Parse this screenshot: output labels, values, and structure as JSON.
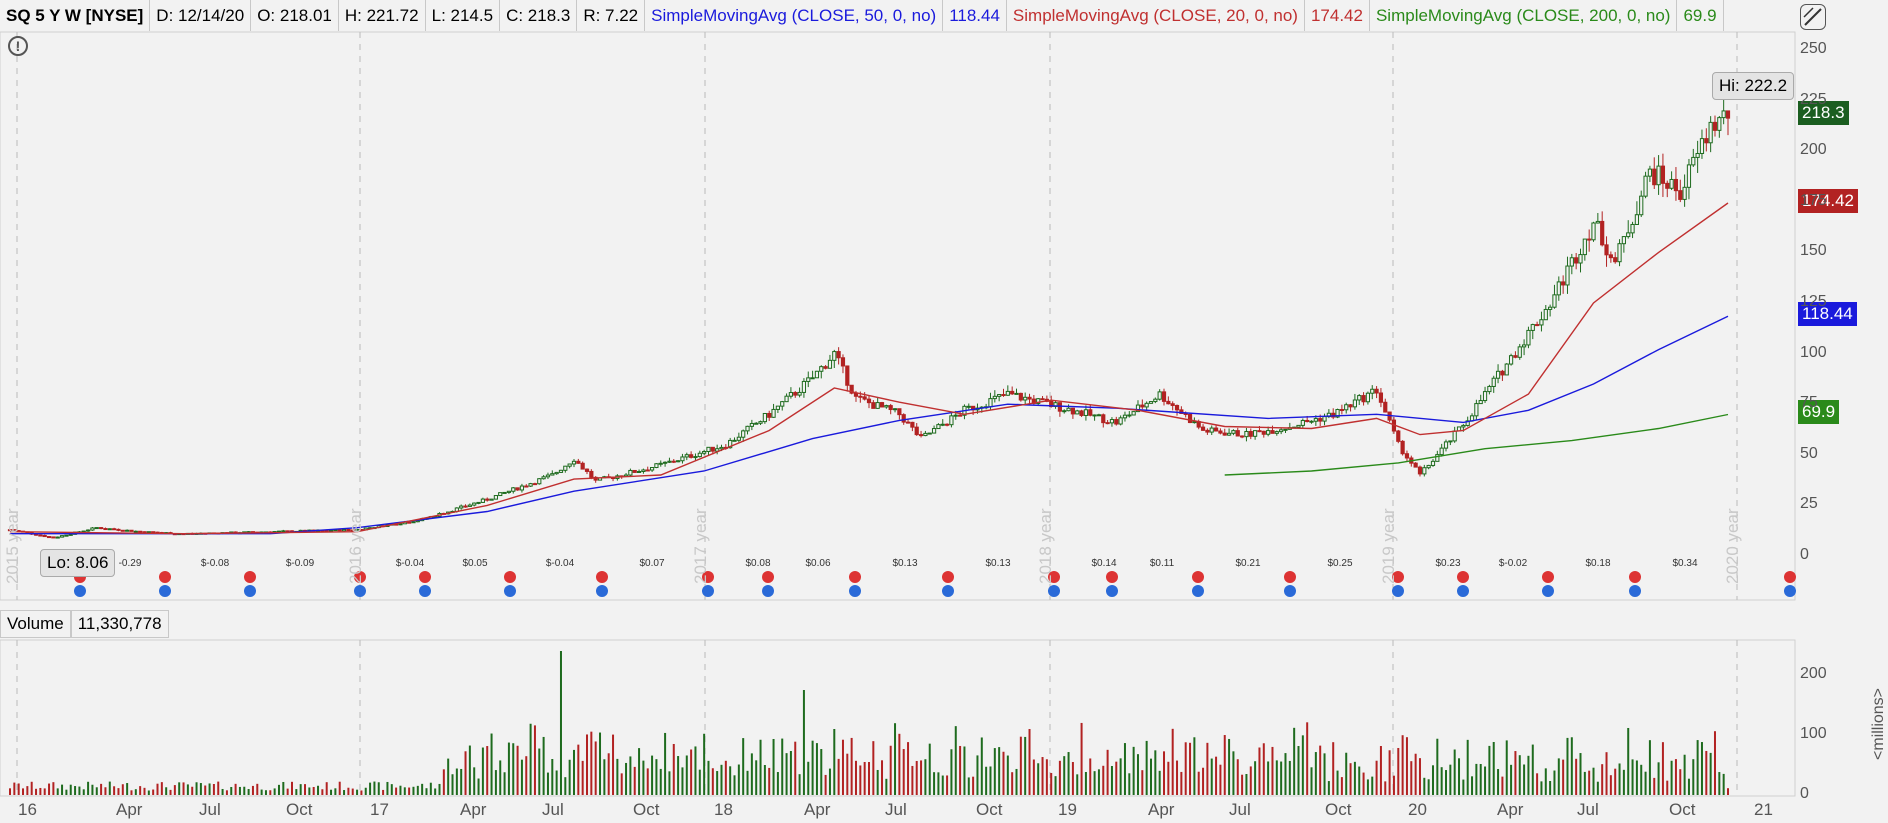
{
  "header": {
    "symbol": "SQ 5 Y W [NYSE]",
    "date": "D: 12/14/20",
    "open": "O: 218.01",
    "high": "H: 221.72",
    "low": "L: 214.5",
    "close": "C: 218.3",
    "range": "R: 7.22",
    "sma50_label": "SimpleMovingAvg (CLOSE, 50, 0, no)",
    "sma50_value": "118.44",
    "sma20_label": "SimpleMovingAvg (CLOSE, 20, 0, no)",
    "sma20_value": "174.42",
    "sma200_label": "SimpleMovingAvg (CLOSE, 200, 0, no)",
    "sma200_value": "69.9"
  },
  "volume_header": {
    "label": "Volume",
    "value": "11,330,778"
  },
  "callouts": {
    "hi": "Hi: 222.2",
    "lo": "Lo: 8.06"
  },
  "price_tags": {
    "close": "218.3",
    "sma20": "174.42",
    "sma50": "118.44",
    "sma200": "69.9"
  },
  "colors": {
    "up": "#1e6b1e",
    "down": "#b22222",
    "sma50": "#1a1adc",
    "sma20": "#c03030",
    "sma200": "#2a8a1a",
    "close_tag": "#1b5e20",
    "bg": "#f2f2f2"
  },
  "chart_data": {
    "type": "candlestick",
    "y_ticks": [
      "0",
      "25",
      "50",
      "75",
      "100",
      "125",
      "150",
      "175",
      "200",
      "225",
      "250"
    ],
    "ylim": [
      0,
      250
    ],
    "volume_ticks": [
      "0",
      "100",
      "200"
    ],
    "volume_unit_label": "<millions>",
    "x_ticks": [
      "16",
      "Apr",
      "Jul",
      "Oct",
      "17",
      "Apr",
      "Jul",
      "Oct",
      "18",
      "Apr",
      "Jul",
      "Oct",
      "19",
      "Apr",
      "Jul",
      "Oct",
      "20",
      "Apr",
      "Jul",
      "Oct",
      "21"
    ],
    "year_markers": [
      "2015 year",
      "2016 year",
      "2017 year",
      "2018 year",
      "2019 year",
      "2020 year"
    ],
    "earnings": [
      "-0.29",
      "$-0.08",
      "$-0.09",
      "$-0.04",
      "$0.05",
      "$-0.04",
      "$0.07",
      "$0.08",
      "$0.06",
      "$0.13",
      "$0.13",
      "$0.14",
      "$0.11",
      "$0.21",
      "$0.25",
      "$0.23",
      "$-0.02",
      "$0.18",
      "$0.34"
    ],
    "close_anchor_points": [
      [
        0,
        13
      ],
      [
        10,
        9
      ],
      [
        20,
        14
      ],
      [
        30,
        12
      ],
      [
        40,
        11
      ],
      [
        60,
        12
      ],
      [
        80,
        13
      ],
      [
        95,
        18
      ],
      [
        110,
        28
      ],
      [
        125,
        40
      ],
      [
        130,
        48
      ],
      [
        135,
        37
      ],
      [
        150,
        45
      ],
      [
        165,
        55
      ],
      [
        175,
        70
      ],
      [
        185,
        88
      ],
      [
        190,
        100
      ],
      [
        195,
        78
      ],
      [
        205,
        70
      ],
      [
        210,
        58
      ],
      [
        220,
        72
      ],
      [
        230,
        80
      ],
      [
        245,
        72
      ],
      [
        255,
        66
      ],
      [
        265,
        80
      ],
      [
        275,
        62
      ],
      [
        285,
        60
      ],
      [
        295,
        64
      ],
      [
        305,
        70
      ],
      [
        315,
        82
      ],
      [
        320,
        55
      ],
      [
        325,
        40
      ],
      [
        335,
        65
      ],
      [
        345,
        95
      ],
      [
        355,
        125
      ],
      [
        365,
        165
      ],
      [
        370,
        145
      ],
      [
        378,
        190
      ],
      [
        385,
        180
      ],
      [
        392,
        212
      ],
      [
        396,
        218.3
      ]
    ],
    "sma20": [
      [
        0,
        12
      ],
      [
        40,
        11
      ],
      [
        80,
        12
      ],
      [
        110,
        25
      ],
      [
        130,
        38
      ],
      [
        150,
        40
      ],
      [
        175,
        62
      ],
      [
        190,
        83
      ],
      [
        205,
        76
      ],
      [
        220,
        70
      ],
      [
        240,
        77
      ],
      [
        260,
        72
      ],
      [
        280,
        64
      ],
      [
        300,
        63
      ],
      [
        315,
        68
      ],
      [
        325,
        60
      ],
      [
        335,
        62
      ],
      [
        350,
        80
      ],
      [
        365,
        125
      ],
      [
        380,
        150
      ],
      [
        396,
        174.42
      ]
    ],
    "sma50": [
      [
        0,
        11
      ],
      [
        60,
        11
      ],
      [
        80,
        14
      ],
      [
        110,
        22
      ],
      [
        130,
        32
      ],
      [
        160,
        42
      ],
      [
        185,
        58
      ],
      [
        205,
        67
      ],
      [
        230,
        75
      ],
      [
        255,
        73
      ],
      [
        290,
        68
      ],
      [
        315,
        70
      ],
      [
        335,
        66
      ],
      [
        350,
        72
      ],
      [
        365,
        85
      ],
      [
        380,
        102
      ],
      [
        396,
        118.44
      ]
    ],
    "sma200": [
      [
        280,
        40
      ],
      [
        300,
        42
      ],
      [
        320,
        46
      ],
      [
        340,
        53
      ],
      [
        360,
        57
      ],
      [
        380,
        63
      ],
      [
        396,
        69.9
      ]
    ]
  }
}
